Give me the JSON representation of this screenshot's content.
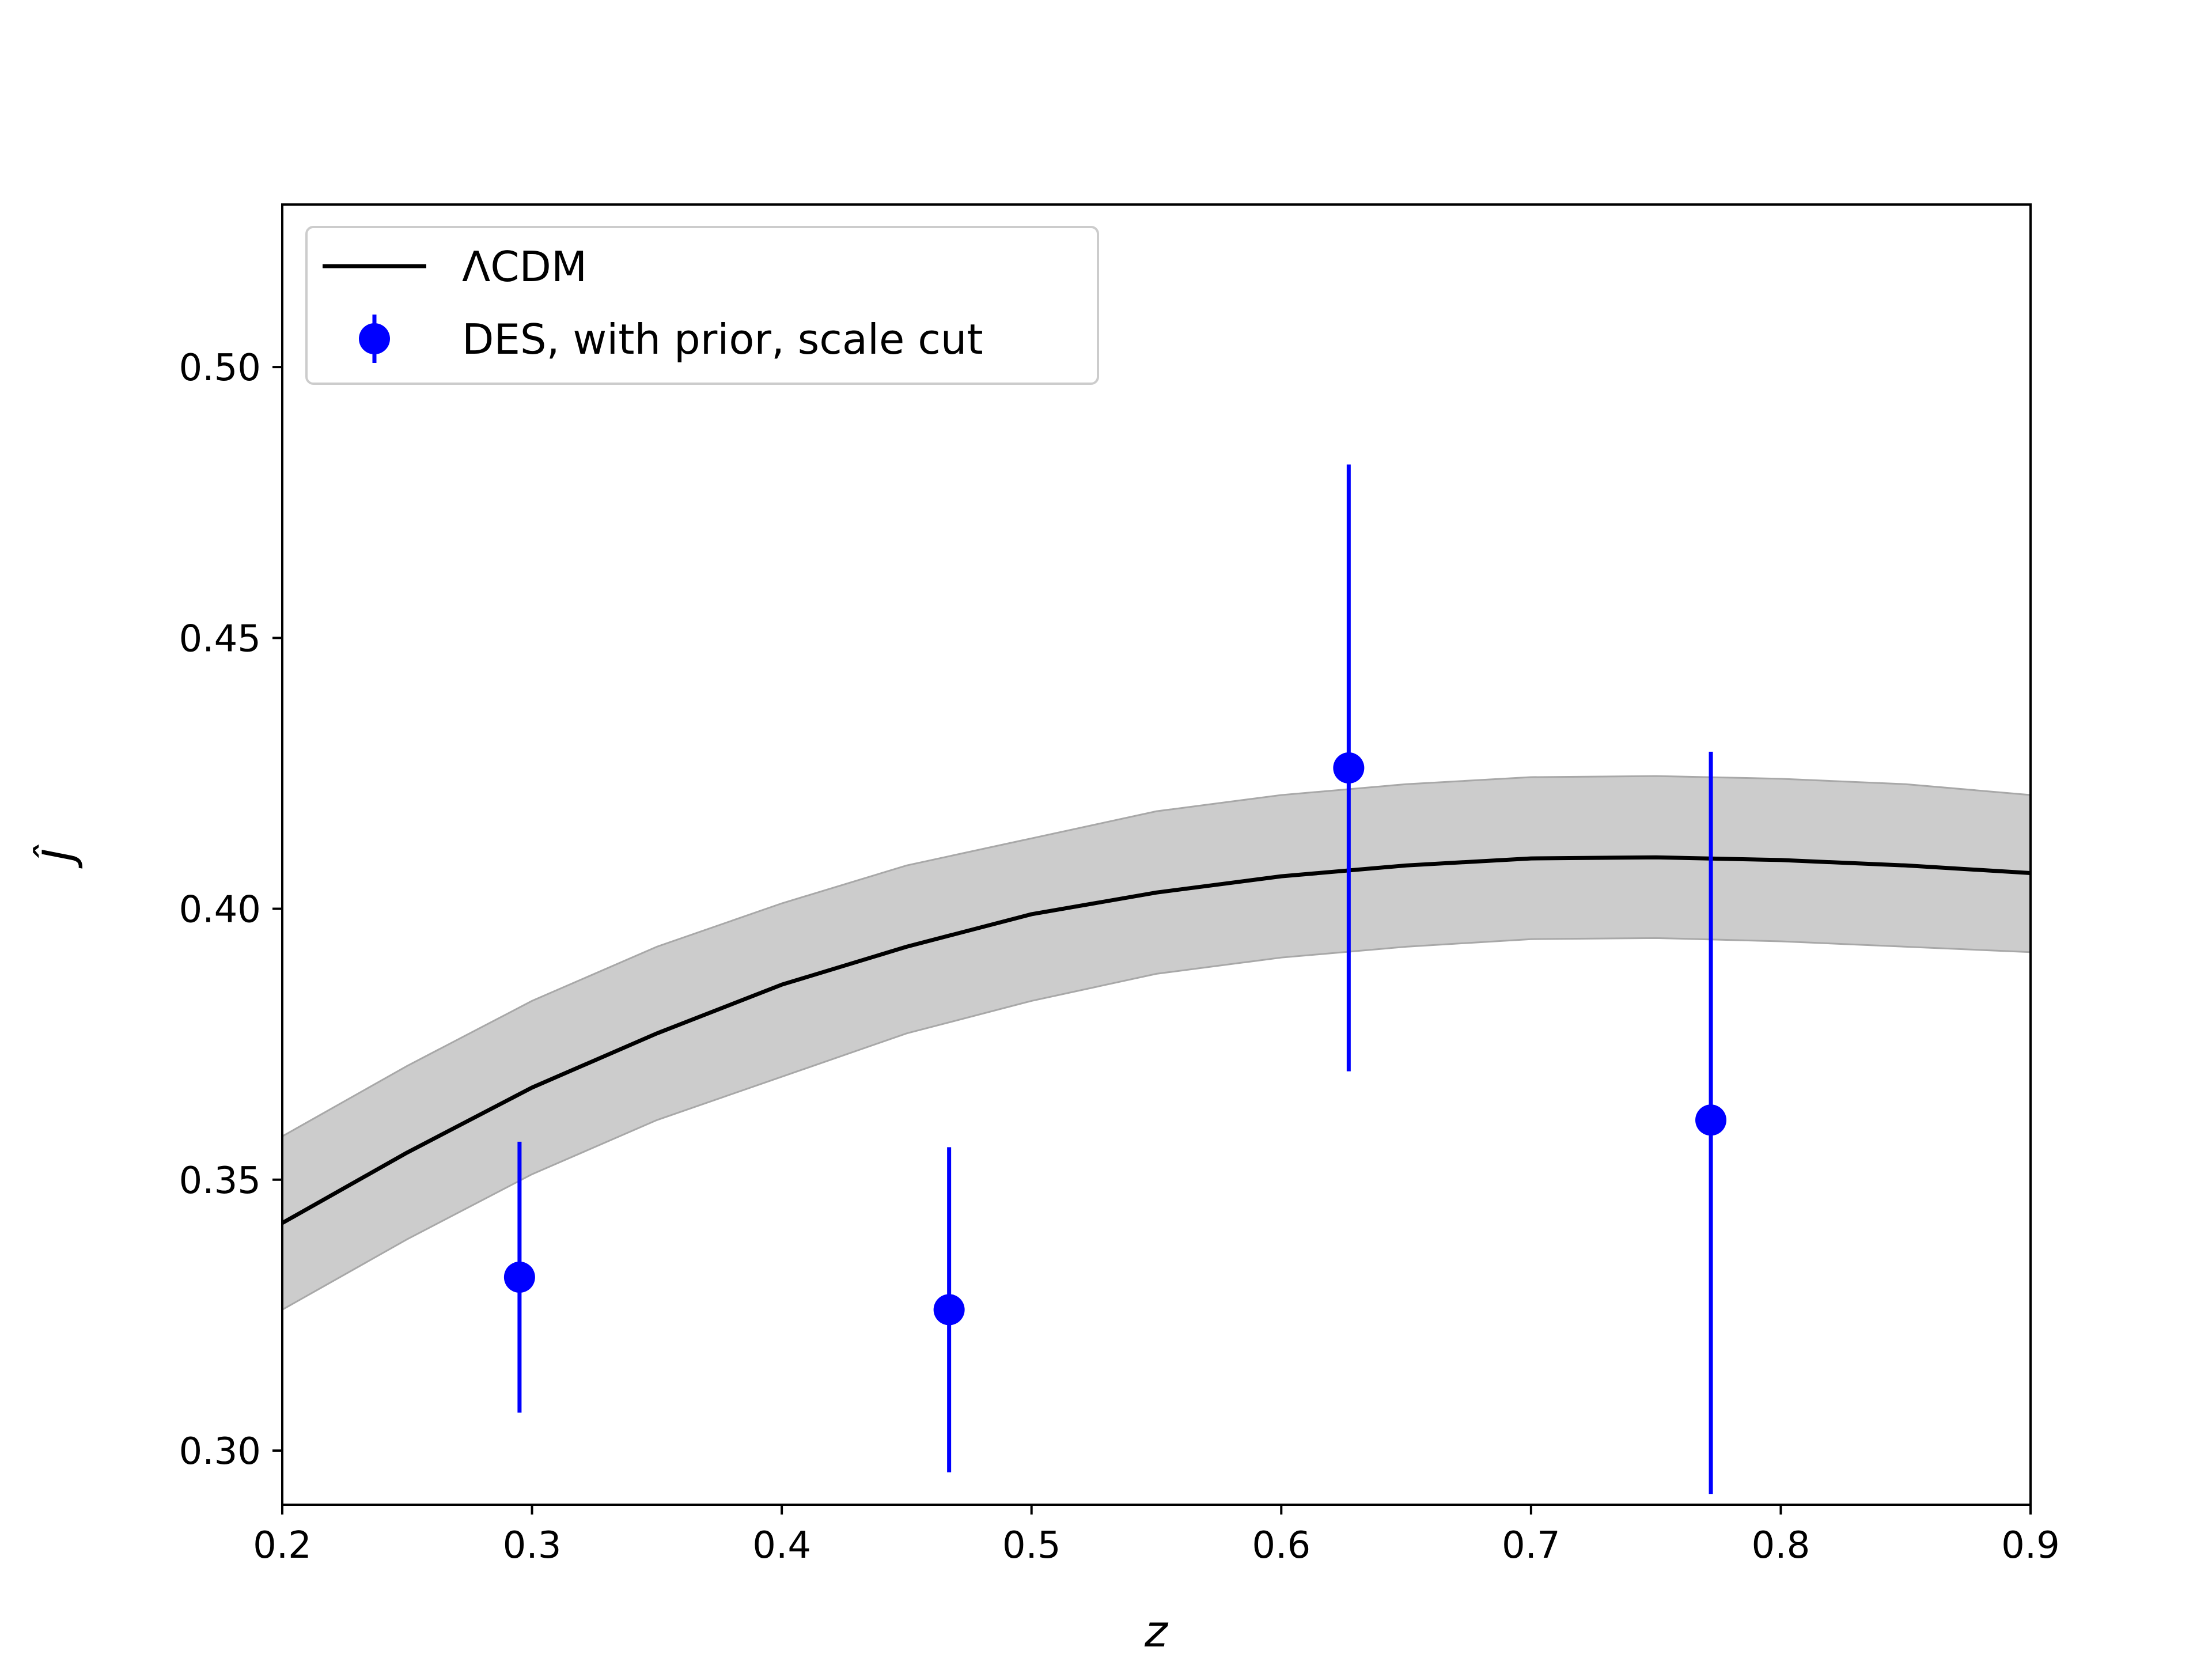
{
  "chart_data": {
    "type": "line",
    "title": "",
    "xlabel": "z",
    "ylabel": "Ĵ",
    "xlim": [
      0.2,
      0.9
    ],
    "ylim": [
      0.29,
      0.53
    ],
    "xticks": [
      0.2,
      0.3,
      0.4,
      0.5,
      0.6,
      0.7,
      0.8,
      0.9
    ],
    "xtick_labels": [
      "0.2",
      "0.3",
      "0.4",
      "0.5",
      "0.6",
      "0.7",
      "0.8",
      "0.9"
    ],
    "yticks": [
      0.3,
      0.35,
      0.4,
      0.45,
      0.5
    ],
    "ytick_labels": [
      "0.30",
      "0.35",
      "0.40",
      "0.45",
      "0.50"
    ],
    "grid": false,
    "legend_position": "upper-left",
    "series": [
      {
        "name": "ΛCDM",
        "kind": "line",
        "color": "#000000",
        "band_color": "#cccccc",
        "band_edge_color": "#a8a8a8",
        "x": [
          0.2,
          0.25,
          0.3,
          0.35,
          0.4,
          0.45,
          0.5,
          0.55,
          0.6,
          0.65,
          0.7,
          0.75,
          0.8,
          0.85,
          0.9
        ],
        "y": [
          0.342,
          0.355,
          0.367,
          0.377,
          0.386,
          0.393,
          0.399,
          0.403,
          0.406,
          0.408,
          0.4093,
          0.4095,
          0.409,
          0.408,
          0.4066
        ],
        "band_upper": [
          0.358,
          0.371,
          0.383,
          0.393,
          0.401,
          0.408,
          0.413,
          0.418,
          0.421,
          0.423,
          0.4243,
          0.4245,
          0.424,
          0.423,
          0.421
        ],
        "band_lower": [
          0.326,
          0.339,
          0.351,
          0.361,
          0.369,
          0.377,
          0.383,
          0.388,
          0.391,
          0.393,
          0.3944,
          0.3946,
          0.394,
          0.393,
          0.392
        ]
      },
      {
        "name": "DES, with prior, scale cut",
        "kind": "errorbar",
        "color": "#0000ff",
        "x": [
          0.295,
          0.467,
          0.627,
          0.772
        ],
        "y": [
          0.332,
          0.326,
          0.426,
          0.361
        ],
        "yerr_lower": [
          0.025,
          0.03,
          0.056,
          0.069
        ],
        "yerr_upper": [
          0.025,
          0.03,
          0.056,
          0.068
        ]
      }
    ]
  }
}
